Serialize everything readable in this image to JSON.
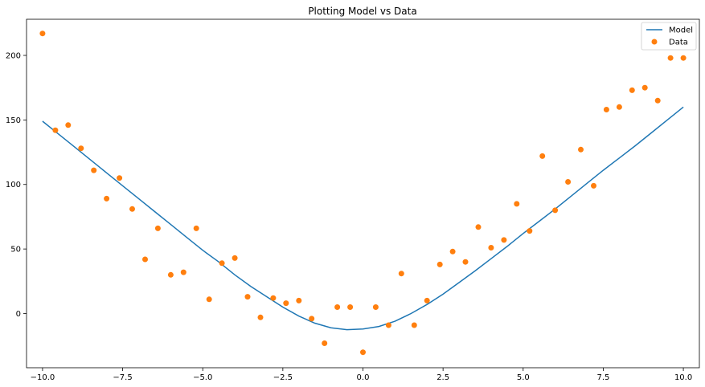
{
  "chart_data": {
    "type": "line+scatter",
    "title": "Plotting Model vs Data",
    "xlabel": "",
    "ylabel": "",
    "xlim": [
      -10.5,
      10.5
    ],
    "ylim": [
      -42,
      228
    ],
    "xticks": [
      -10,
      -7.5,
      -5,
      -2.5,
      0,
      2.5,
      5,
      7.5,
      10
    ],
    "xtick_labels": [
      "−10.0",
      "−7.5",
      "−5.0",
      "−2.5",
      "0.0",
      "2.5",
      "5.0",
      "7.5",
      "10.0"
    ],
    "yticks": [
      0,
      50,
      100,
      150,
      200
    ],
    "ytick_labels": [
      "0",
      "50",
      "100",
      "150",
      "200"
    ],
    "grid": false,
    "legend": {
      "placement": "top-right",
      "entries": [
        "Model",
        "Data"
      ]
    },
    "colors": {
      "model": "#1f77b4",
      "data": "#ff7f0e"
    },
    "series": [
      {
        "name": "Model",
        "kind": "line",
        "x": [
          -10,
          -9.5,
          -9,
          -8.5,
          -8,
          -7.5,
          -7,
          -6.5,
          -6,
          -5.5,
          -5,
          -4.5,
          -4,
          -3.5,
          -3,
          -2.5,
          -2,
          -1.5,
          -1,
          -0.5,
          0,
          0.5,
          1,
          1.5,
          2,
          2.5,
          3,
          3.5,
          4,
          4.5,
          5,
          5.5,
          6,
          6.5,
          7,
          7.5,
          8,
          8.5,
          9,
          9.5,
          10
        ],
        "y": [
          149,
          139,
          129,
          119,
          109,
          99,
          89,
          79,
          69,
          59,
          49,
          40,
          30,
          21,
          13,
          5,
          -2,
          -7.5,
          -11,
          -12.5,
          -12,
          -10,
          -6,
          0,
          7,
          15,
          24,
          33,
          42.5,
          52,
          62,
          71.5,
          81,
          91,
          101,
          111,
          120.5,
          130,
          140,
          150,
          160
        ]
      },
      {
        "name": "Data",
        "kind": "scatter",
        "x": [
          -10,
          -9.6,
          -9.2,
          -8.8,
          -8.4,
          -8.0,
          -7.6,
          -7.2,
          -6.8,
          -6.4,
          -6.0,
          -5.6,
          -5.2,
          -4.8,
          -4.4,
          -4.0,
          -3.6,
          -3.2,
          -2.8,
          -2.4,
          -2.0,
          -1.6,
          -1.2,
          -0.8,
          -0.4,
          0.0,
          0.4,
          0.8,
          1.2,
          1.6,
          2.0,
          2.4,
          2.8,
          3.2,
          3.6,
          4.0,
          4.4,
          4.8,
          5.2,
          5.6,
          6.0,
          6.4,
          6.8,
          7.2,
          7.6,
          8.0,
          8.4,
          8.8,
          9.2,
          9.6,
          10.0
        ],
        "y": [
          217,
          142,
          146,
          128,
          111,
          89,
          105,
          81,
          42,
          66,
          30,
          32,
          66,
          11,
          39,
          43,
          13,
          -3,
          12,
          8,
          10,
          -4,
          -23,
          5,
          5,
          -30,
          5,
          -9,
          31,
          -9,
          10,
          38,
          48,
          40,
          67,
          51,
          57,
          85,
          64,
          122,
          80,
          102,
          127,
          99,
          158,
          160,
          173,
          175,
          165,
          198,
          198
        ]
      }
    ]
  }
}
